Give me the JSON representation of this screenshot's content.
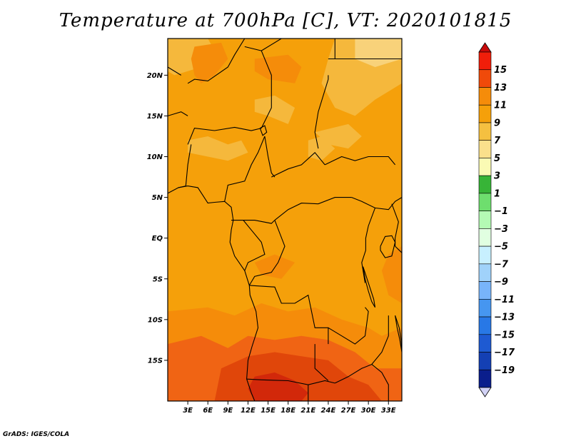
{
  "title": "Temperature at 700hPa [C], VT: 2020101815",
  "credit": "GrADS: IGES/COLA",
  "map": {
    "lon_range": [
      0,
      35
    ],
    "lat_range": [
      -20,
      24.5
    ],
    "lat_ticks": [
      {
        "value": 20,
        "label": "20N"
      },
      {
        "value": 15,
        "label": "15N"
      },
      {
        "value": 10,
        "label": "10N"
      },
      {
        "value": 5,
        "label": "5N"
      },
      {
        "value": 0,
        "label": "EQ"
      },
      {
        "value": -5,
        "label": "5S"
      },
      {
        "value": -10,
        "label": "10S"
      },
      {
        "value": -15,
        "label": "15S"
      }
    ],
    "lon_ticks": [
      {
        "value": 3,
        "label": "3E"
      },
      {
        "value": 6,
        "label": "6E"
      },
      {
        "value": 9,
        "label": "9E"
      },
      {
        "value": 12,
        "label": "12E"
      },
      {
        "value": 15,
        "label": "15E"
      },
      {
        "value": 18,
        "label": "18E"
      },
      {
        "value": 21,
        "label": "21E"
      },
      {
        "value": 24,
        "label": "24E"
      },
      {
        "value": 27,
        "label": "27E"
      },
      {
        "value": 30,
        "label": "30E"
      },
      {
        "value": 33,
        "label": "33E"
      }
    ]
  },
  "colorbar": {
    "labels": [
      "15",
      "13",
      "11",
      "9",
      "7",
      "5",
      "3",
      "1",
      "−1",
      "−3",
      "−5",
      "−7",
      "−9",
      "−11",
      "−13",
      "−15",
      "−17",
      "−19"
    ],
    "colors": [
      "#f01e0a",
      "#f04a0a",
      "#f58c0a",
      "#f5a00a",
      "#f5c040",
      "#fae08c",
      "#fafab4",
      "#37b437",
      "#6ede6e",
      "#b4fab4",
      "#e1ffe1",
      "#c8f0ff",
      "#a0d2fa",
      "#78b4fa",
      "#4696f0",
      "#2878e6",
      "#1e5ad2",
      "#1440b4",
      "#0a1e8c"
    ],
    "top_arrow_color": "#c80a0a",
    "bottom_arrow_color": "#d2d2f5"
  },
  "palette": {
    "base": "#f5a00a",
    "warm": "#f58c0a",
    "warmer": "#f06414",
    "hot": "#e0460a",
    "hottest": "#d2280a",
    "cool": "#f5b83c",
    "cooler": "#f8d27a"
  }
}
